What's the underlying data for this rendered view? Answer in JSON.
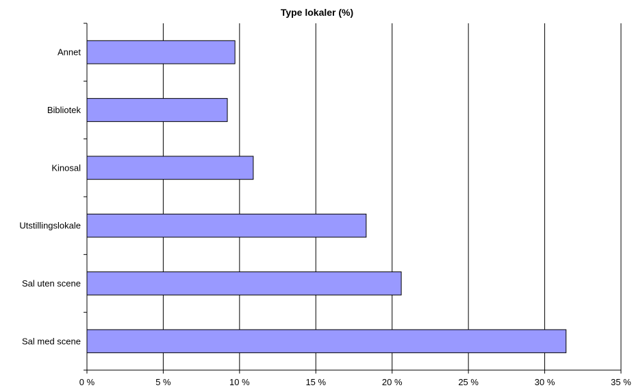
{
  "chart_data": {
    "type": "bar",
    "orientation": "horizontal",
    "title": "Type lokaler (%)",
    "categories": [
      "Annet",
      "Bibliotek",
      "Kinosal",
      "Utstillingslokale",
      "Sal uten scene",
      "Sal med scene"
    ],
    "values": [
      9.7,
      9.2,
      10.9,
      18.3,
      20.6,
      31.4
    ],
    "xlim": [
      0,
      35
    ],
    "xticks": [
      0,
      5,
      10,
      15,
      20,
      25,
      30,
      35
    ],
    "xtick_labels": [
      "0 %",
      "5 %",
      "10 %",
      "15 %",
      "20 %",
      "25 %",
      "30 %",
      "35 %"
    ],
    "grid": true,
    "legend": "none",
    "colors": {
      "bar_fill": "#9999ff",
      "bar_stroke": "#000000",
      "gridline": "#000000",
      "axis": "#000000"
    }
  }
}
